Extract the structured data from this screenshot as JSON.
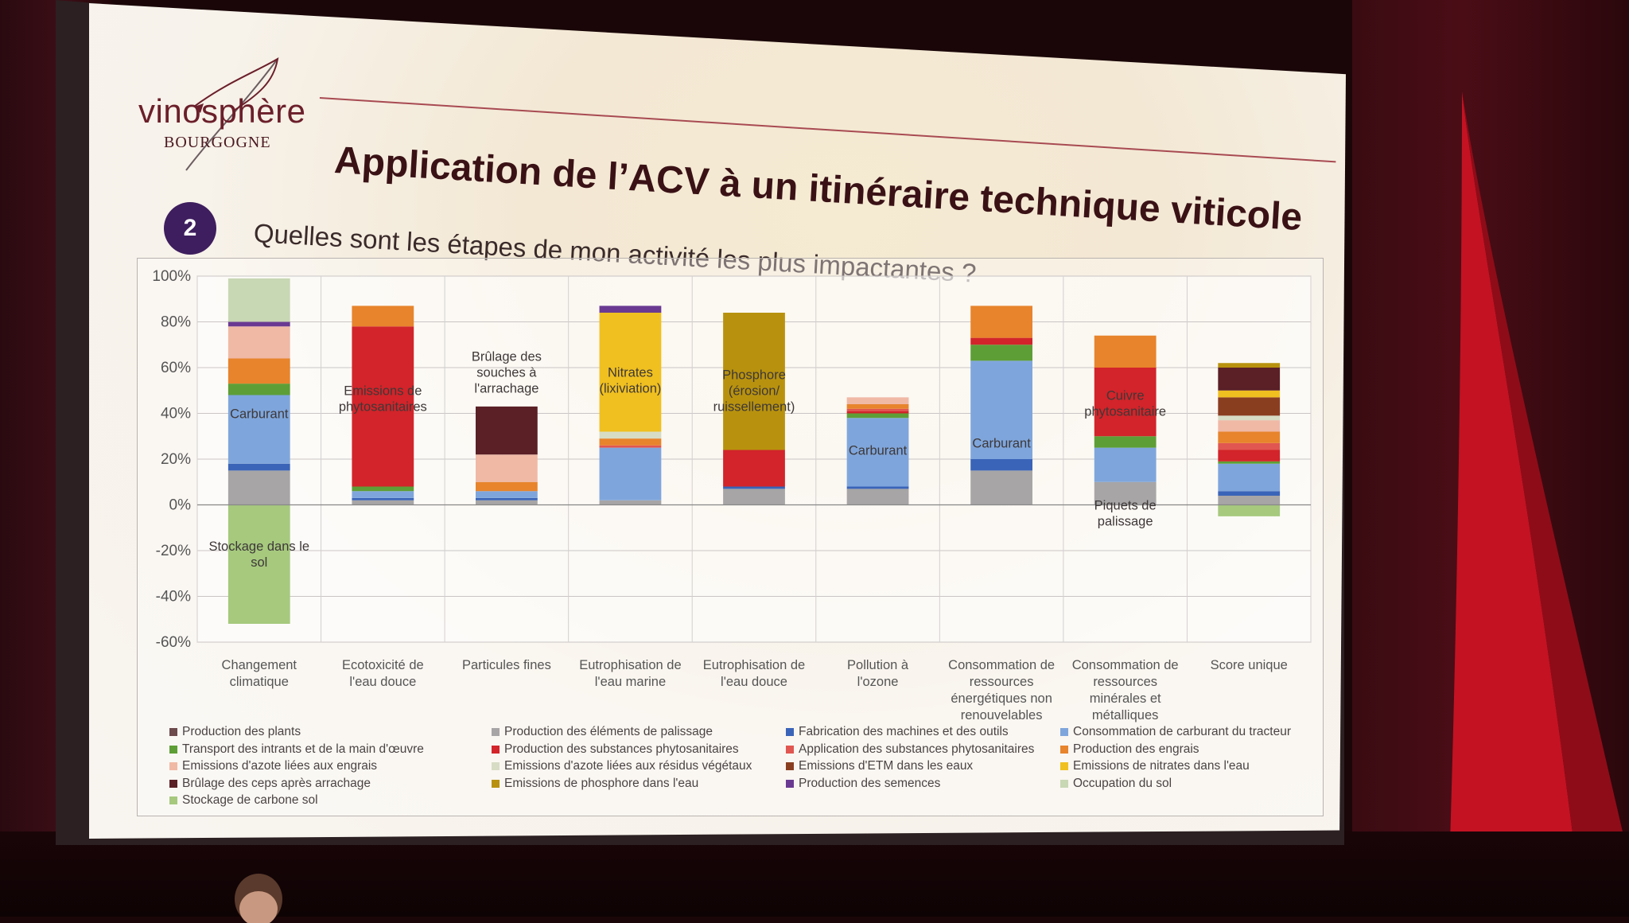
{
  "slide": {
    "logo_text": "vinosphère",
    "logo_region": "BOURGOGNE",
    "title": "Application de l’ACV à un itinéraire technique viticole",
    "step_number": "2",
    "subtitle": "Quelles sont les étapes de mon activité les plus impactantes ?"
  },
  "colors": {
    "title": "#3a1216",
    "badge": "#3e1e5e",
    "rule": "#a84a52"
  },
  "chart_data": {
    "type": "bar",
    "stacked": true,
    "grid": true,
    "legend_position": "bottom",
    "ylim": [
      -60,
      100
    ],
    "y_ticks": [
      "100%",
      "80%",
      "60%",
      "40%",
      "20%",
      "0%",
      "-20%",
      "-40%",
      "-60%"
    ],
    "categories": [
      "Changement climatique",
      "Ecotoxicité de l'eau douce",
      "Particules fines",
      "Eutrophisation de l'eau marine",
      "Eutrophisation de l'eau douce",
      "Pollution à l'ozone",
      "Consommation de ressources énergétiques non renouvelables",
      "Consommation de ressources minérales et métalliques",
      "Score unique"
    ],
    "series": [
      {
        "name": "Production des plants",
        "color": "#6d4a4c",
        "values": [
          0,
          0,
          0,
          0,
          0,
          0,
          0,
          0,
          0
        ]
      },
      {
        "name": "Production des éléments de palissage",
        "color": "#a7a5a6",
        "values": [
          15,
          2,
          2,
          2,
          7,
          7,
          15,
          10,
          4
        ]
      },
      {
        "name": "Fabrication des machines et des outils",
        "color": "#3a64b8",
        "values": [
          3,
          1,
          1,
          0,
          1,
          1,
          5,
          0,
          2
        ]
      },
      {
        "name": "Consommation de carburant du tracteur",
        "color": "#7fa6dc",
        "values": [
          30,
          3,
          3,
          23,
          0,
          30,
          43,
          15,
          12
        ]
      },
      {
        "name": "Transport des intrants et de la main d'œuvre",
        "color": "#5e9e36",
        "values": [
          5,
          2,
          0,
          0,
          0,
          2,
          7,
          5,
          1
        ]
      },
      {
        "name": "Production des substances phytosanitaires",
        "color": "#d2242a",
        "values": [
          0,
          70,
          0,
          0,
          16,
          1,
          3,
          30,
          5
        ]
      },
      {
        "name": "Application des substances phytosanitaires",
        "color": "#e15650",
        "values": [
          0,
          0,
          0,
          1,
          0,
          1,
          0,
          0,
          3
        ]
      },
      {
        "name": "Production des engrais",
        "color": "#e7842c",
        "values": [
          11,
          9,
          4,
          3,
          0,
          2,
          14,
          14,
          5
        ]
      },
      {
        "name": "Emissions d'azote liées aux engrais",
        "color": "#f0b9a6",
        "values": [
          14,
          0,
          12,
          0,
          0,
          3,
          0,
          0,
          5
        ]
      },
      {
        "name": "Emissions d'azote liées aux résidus végétaux",
        "color": "#d7dcc5",
        "values": [
          0,
          0,
          0,
          3,
          0,
          0,
          0,
          0,
          2
        ]
      },
      {
        "name": "Emissions d'ETM dans les eaux",
        "color": "#8a3e20",
        "values": [
          0,
          0,
          0,
          0,
          0,
          0,
          0,
          0,
          8
        ]
      },
      {
        "name": "Emissions de nitrates dans l'eau",
        "color": "#f0c020",
        "values": [
          0,
          0,
          0,
          52,
          0,
          0,
          0,
          0,
          3
        ]
      },
      {
        "name": "Brûlage des ceps après arrachage",
        "color": "#5a2026",
        "values": [
          0,
          0,
          21,
          0,
          0,
          0,
          0,
          0,
          10
        ]
      },
      {
        "name": "Emissions de phosphore dans l'eau",
        "color": "#b8920e",
        "values": [
          0,
          0,
          0,
          0,
          60,
          0,
          0,
          0,
          2
        ]
      },
      {
        "name": "Production des semences",
        "color": "#6a3a92",
        "values": [
          2,
          0,
          0,
          3,
          0,
          0,
          0,
          0,
          0
        ]
      },
      {
        "name": "Occupation du sol",
        "color": "#c8d7b4",
        "values": [
          19,
          0,
          0,
          0,
          0,
          0,
          0,
          0,
          0
        ]
      },
      {
        "name": "Stockage de carbone sol",
        "color": "#a6c97e",
        "values": [
          -52,
          0,
          0,
          0,
          0,
          0,
          0,
          0,
          -5
        ]
      }
    ],
    "annotations": [
      {
        "category": 0,
        "text": "Carburant"
      },
      {
        "category": 0,
        "text": "Stockage dans le sol"
      },
      {
        "category": 1,
        "text": "Emissions de phytosanitaires"
      },
      {
        "category": 2,
        "text": "Brûlage des souches à l'arrachage"
      },
      {
        "category": 3,
        "text": "Nitrates (lixiviation)"
      },
      {
        "category": 4,
        "text": "Phosphore (érosion/ ruissellement)"
      },
      {
        "category": 5,
        "text": "Carburant"
      },
      {
        "category": 6,
        "text": "Carburant"
      },
      {
        "category": 7,
        "text": "Cuivre phytosanitaire"
      },
      {
        "category": 7,
        "text": "Piquets de palissage"
      }
    ]
  }
}
